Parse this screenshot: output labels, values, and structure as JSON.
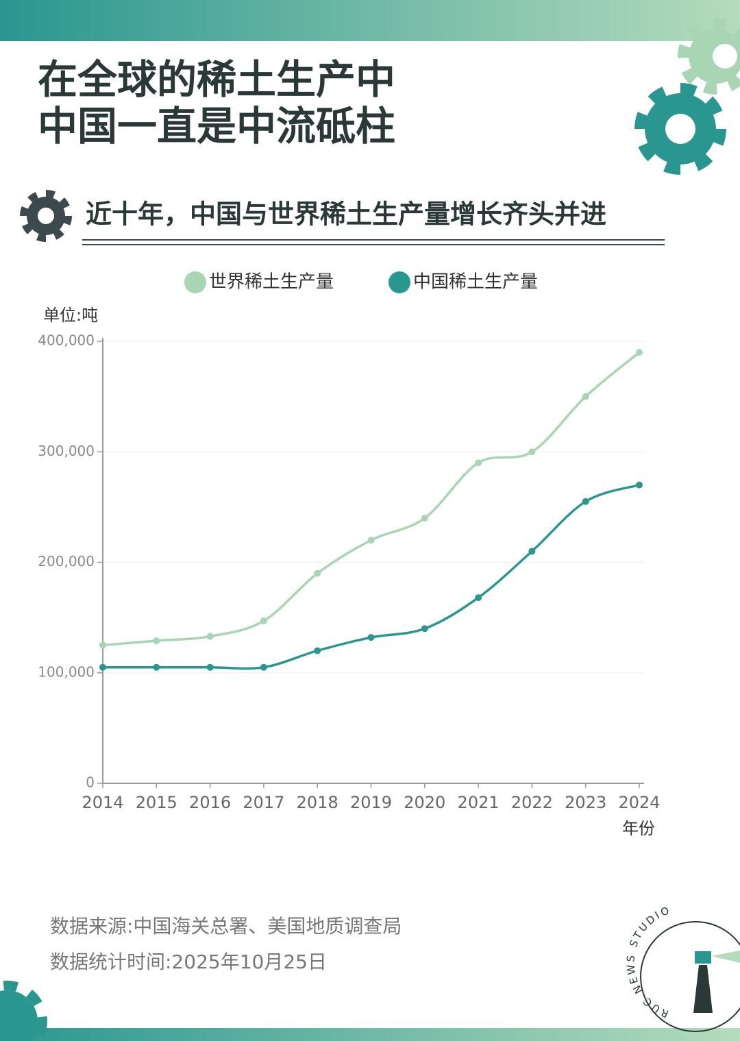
{
  "header": {
    "title": [
      "在全球的稀土生产中",
      "中国一直是中流砥柱"
    ]
  },
  "chart_data": {
    "type": "line",
    "title": "近十年，中国与世界稀土生产量增长齐头并进",
    "y_unit": "单位:吨",
    "xlabel": "年份",
    "legend": "top",
    "grid": true,
    "x": [
      2014,
      2015,
      2016,
      2017,
      2018,
      2019,
      2020,
      2021,
      2022,
      2023,
      2024
    ],
    "xlim": [
      2014,
      2024
    ],
    "xticks": [
      2014,
      2015,
      2016,
      2017,
      2018,
      2019,
      2020,
      2021,
      2022,
      2023,
      2024
    ],
    "ylim": [
      0,
      400000
    ],
    "yticks": [
      0,
      {
        "value": 100000,
        "label": "100,000"
      },
      {
        "value": 200000,
        "label": "200,000"
      },
      {
        "value": 300000,
        "label": "300,000"
      },
      {
        "value": 400000,
        "label": "400,000"
      }
    ],
    "series": [
      {
        "name": "世界稀土生产量",
        "color": "#a8d5b3",
        "values": [
          125000,
          129000,
          133000,
          147000,
          190000,
          220000,
          240000,
          290000,
          300000,
          350000,
          390000
        ]
      },
      {
        "name": "中国稀土生产量",
        "color": "#2a9690",
        "values": [
          105000,
          105000,
          105000,
          105000,
          120000,
          132000,
          140000,
          168000,
          210000,
          255000,
          270000
        ]
      }
    ]
  },
  "footer": {
    "source": "数据来源:中国海关总署、美国地质调查局",
    "date": "数据统计时间:2025年10月25日",
    "logo": "RUC NEWS STUDIO"
  }
}
